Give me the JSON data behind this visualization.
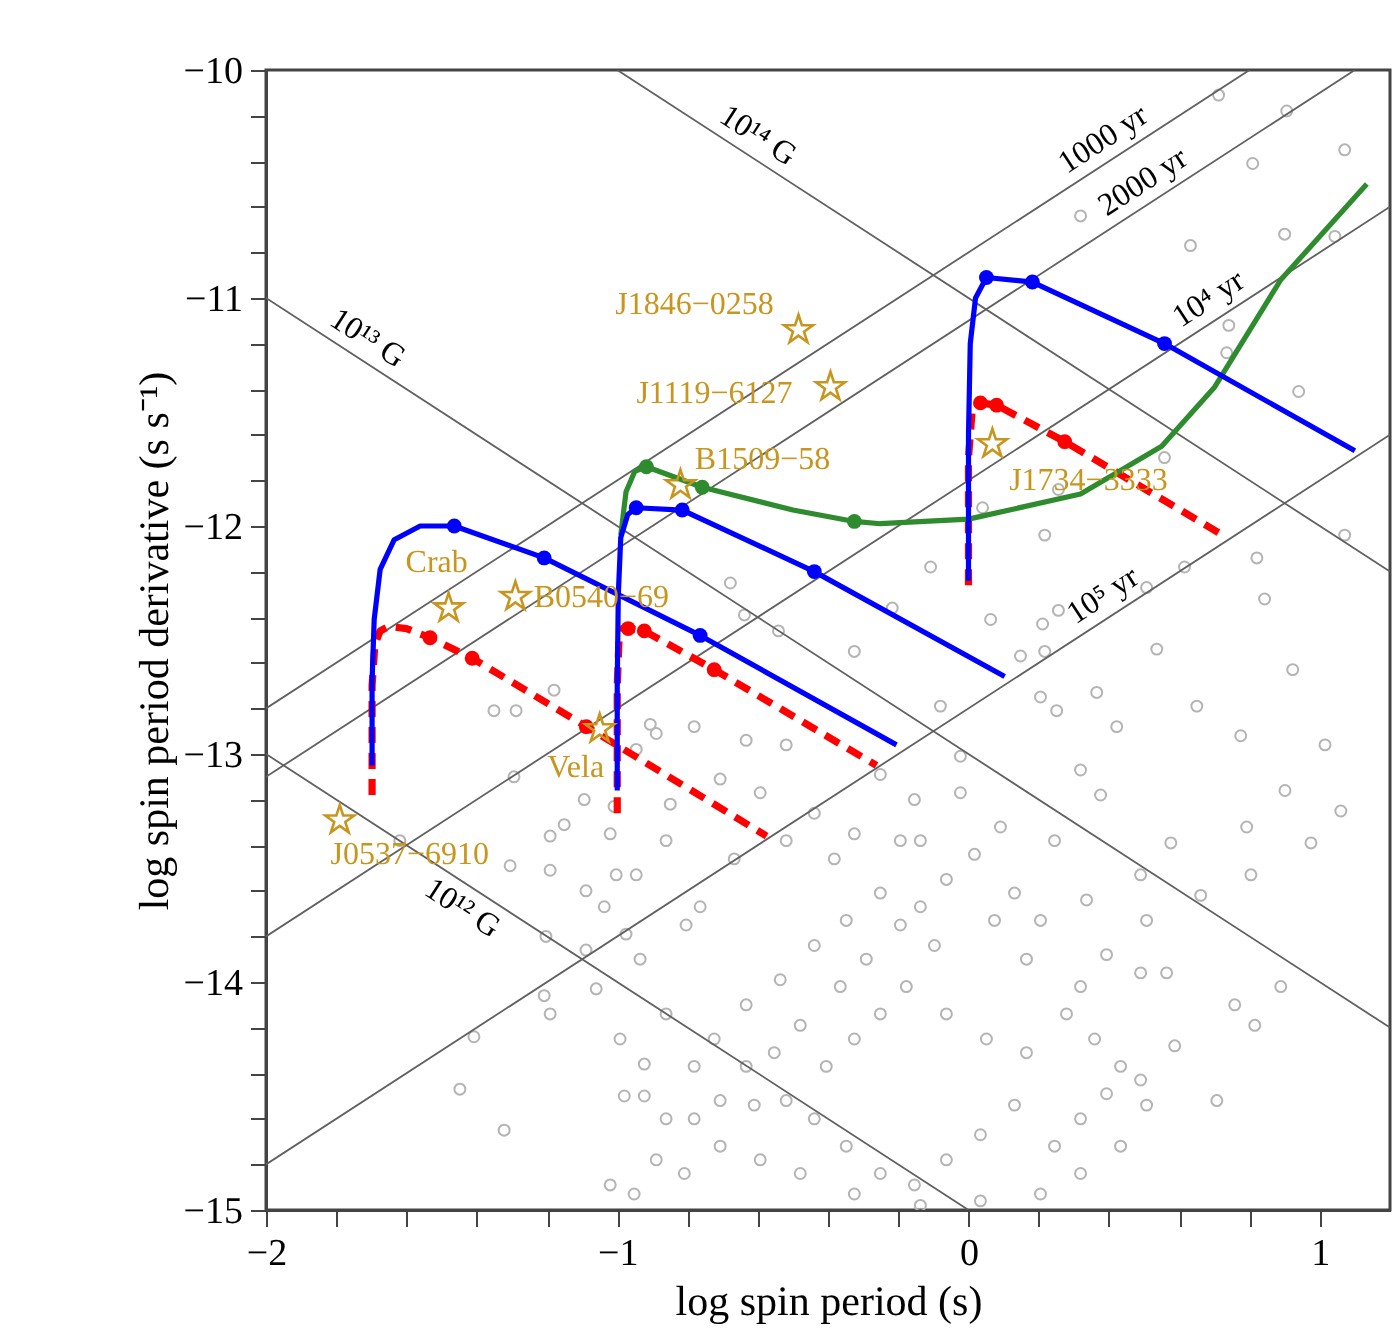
{
  "chart_data": {
    "type": "scatter",
    "xlabel": "log spin period (s)",
    "ylabel": "log spin period derivative (s s⁻¹)",
    "xlim": [
      -2,
      1.2
    ],
    "ylim": [
      -15,
      -10
    ],
    "xticks": [
      -2,
      {
        "value": -1.8,
        "label": null
      },
      {
        "value": -1.6,
        "label": null
      },
      {
        "value": -1.4,
        "label": null
      },
      {
        "value": -1.2,
        "label": null
      },
      -1,
      {
        "value": -0.8,
        "label": null
      },
      {
        "value": -0.6,
        "label": null
      },
      {
        "value": -0.4,
        "label": null
      },
      {
        "value": -0.2,
        "label": null
      },
      0,
      {
        "value": 0.2,
        "label": null
      },
      {
        "value": 0.4,
        "label": null
      },
      {
        "value": 0.6,
        "label": null
      },
      {
        "value": 0.8,
        "label": null
      },
      1
    ],
    "yticks": [
      -15,
      {
        "value": -14.8,
        "label": null
      },
      {
        "value": -14.6,
        "label": null
      },
      {
        "value": -14.4,
        "label": null
      },
      {
        "value": -14.2,
        "label": null
      },
      -14,
      {
        "value": -13.8,
        "label": null
      },
      {
        "value": -13.6,
        "label": null
      },
      {
        "value": -13.4,
        "label": null
      },
      {
        "value": -13.2,
        "label": null
      },
      -13,
      {
        "value": -12.8,
        "label": null
      },
      {
        "value": -12.6,
        "label": null
      },
      {
        "value": -12.4,
        "label": null
      },
      {
        "value": -12.2,
        "label": null
      },
      -12,
      {
        "value": -11.8,
        "label": null
      },
      {
        "value": -11.6,
        "label": null
      },
      {
        "value": -11.4,
        "label": null
      },
      {
        "value": -11.2,
        "label": null
      },
      -11,
      {
        "value": -10.8,
        "label": null
      },
      {
        "value": -10.6,
        "label": null
      },
      {
        "value": -10.4,
        "label": null
      },
      {
        "value": -10.2,
        "label": null
      },
      -10
    ],
    "grid": false,
    "legend": false,
    "series": [
      {
        "marker": "circle",
        "color": "#b4b4b4",
        "x": [
          0.712,
          0.906,
          0.809,
          1.071,
          0.319,
          0.632,
          0.9,
          1.043,
          0.741,
          0.735,
          0.94,
          0.558,
          0.256,
          0.04,
          0.217,
          -0.108,
          0.615,
          1.071,
          0.821,
          -0.217,
          0.256,
          0.507,
          0.843,
          -0.678,
          -0.638,
          -0.541,
          -0.325,
          0.063,
          0.211,
          0.536,
          0.923,
          0.148,
          0.217,
          -0.08,
          0.205,
          0.251,
          0.365,
          0.422,
          0.65,
          0.775,
          1.015,
          -0.023,
          0.319,
          0.376,
          0.901,
          1.06,
          0.975,
          0.792,
          0.576,
          0.804,
          0.49,
          0.661,
          0.758,
          0.815,
          0.889,
          0.707,
          0.587,
          0.49,
          0.319,
          0.393,
          0.165,
          0.074,
          -0.097,
          -0.251,
          -0.348,
          -0.439,
          -0.536,
          -0.633,
          -0.724,
          -0.781,
          -0.633,
          -0.519,
          -0.439,
          -0.348,
          -0.251,
          -0.154,
          -0.063,
          0.034,
          0.131,
          0.245,
          0.319,
          0.393,
          0.165,
          0.051,
          -0.063,
          -0.177,
          -0.251,
          -0.325,
          -0.405,
          -0.479,
          -0.553,
          -0.365,
          -0.291,
          -0.194,
          -0.137,
          -0.063,
          0.017,
          0.131,
          0.205,
          0.279,
          0.359,
          0.433,
          0.507,
          0.433,
          0.319,
          0.205,
          0.034,
          -0.137,
          -0.325,
          -0.479,
          -0.593,
          -0.707,
          -0.781,
          -0.707,
          -0.61,
          -0.764,
          -0.667,
          -0.519,
          -0.439,
          -0.325,
          -0.194,
          -0.154,
          -0.251,
          -0.519,
          -0.633,
          -0.781,
          -0.707,
          -0.593,
          -0.382,
          -0.137,
          -0.023,
          0.091,
          0.245,
          0.336,
          0.507,
          0.564,
          0.49,
          -1.351,
          -1.288,
          -1.18,
          -1.294,
          -1.094,
          -1.151,
          -1.191,
          -1.02,
          -1.305,
          -1.191,
          -1.089,
          -1.003,
          -0.946,
          -1.037,
          -1.203,
          -1.089,
          -0.935,
          -1.208,
          -1.191,
          -1.06,
          -1.408,
          -1.448,
          -1.322,
          -0.992,
          -0.923,
          -0.98,
          -0.923,
          -0.861,
          -0.889,
          -0.809,
          -1.02,
          -0.952,
          -0.975,
          -0.861,
          -0.804,
          -0.861,
          -0.889,
          -1.009,
          -0.946,
          -0.906,
          -0.849,
          -1.619
        ],
        "values": [
          -10.11,
          -10.18,
          -10.41,
          -10.35,
          -10.64,
          -10.77,
          -10.72,
          -10.73,
          -11.12,
          -11.24,
          -11.41,
          -11.7,
          -11.84,
          -11.92,
          -12.04,
          -12.18,
          -12.18,
          -12.04,
          -12.14,
          -12.36,
          -12.37,
          -12.27,
          -12.32,
          -12.25,
          -12.39,
          -12.46,
          -12.55,
          -12.41,
          -12.43,
          -12.54,
          -12.63,
          -12.57,
          -12.55,
          -12.79,
          -12.75,
          -12.81,
          -12.73,
          -12.88,
          -12.79,
          -12.92,
          -12.96,
          -13.01,
          -13.07,
          -13.18,
          -13.16,
          -13.25,
          -13.39,
          -13.32,
          -13.39,
          -13.53,
          -13.53,
          -13.62,
          -14.1,
          -14.19,
          -14.02,
          -14.52,
          -14.28,
          -14.43,
          -14.02,
          -13.88,
          -13.9,
          -13.73,
          -13.84,
          -13.61,
          -13.73,
          -13.84,
          -13.99,
          -14.1,
          -14.25,
          -14.37,
          -14.37,
          -14.52,
          -14.6,
          -14.72,
          -14.84,
          -14.89,
          -14.78,
          -14.67,
          -14.54,
          -14.72,
          -14.6,
          -14.49,
          -14.31,
          -14.25,
          -14.14,
          -14.02,
          -14.14,
          -14.25,
          -14.37,
          -14.19,
          -14.31,
          -14.02,
          -13.9,
          -13.75,
          -13.67,
          -13.55,
          -13.44,
          -13.61,
          -13.73,
          -14.14,
          -14.25,
          -14.37,
          -14.54,
          -14.72,
          -14.84,
          -14.93,
          -14.96,
          -14.98,
          -14.93,
          -14.84,
          -14.78,
          -14.72,
          -14.6,
          -14.52,
          -14.54,
          -13.67,
          -13.46,
          -13.38,
          -13.26,
          -13.35,
          -13.38,
          -13.2,
          -13.09,
          -12.96,
          -12.94,
          -12.88,
          -13.11,
          -13.17,
          -13.46,
          -13.38,
          -13.17,
          -13.32,
          -13.38,
          -13.64,
          -13.73,
          -13.96,
          -13.96,
          -12.81,
          -12.81,
          -12.72,
          -13.1,
          -13.2,
          -13.31,
          -13.36,
          -13.35,
          -13.49,
          -13.51,
          -13.6,
          -13.53,
          -13.53,
          -13.67,
          -13.8,
          -13.86,
          -13.9,
          -14.06,
          -14.14,
          -14.03,
          -14.24,
          -14.47,
          -14.65,
          -14.25,
          -14.36,
          -14.5,
          -14.5,
          -14.6,
          -14.78,
          -14.84,
          -14.89,
          -14.93,
          -13.79,
          -13.38,
          -13.75,
          -14.14,
          -12.91,
          -13.23,
          -12.98,
          -12.87,
          -13.22,
          -13.38
        ]
      },
      {
        "type": "line",
        "name": "10¹⁴ G",
        "line_style": "solid",
        "color": "#606060",
        "x": [
          -1,
          1.2
        ],
        "values": [
          -10,
          -12.2
        ]
      },
      {
        "type": "line",
        "name": "10¹³ G",
        "line_style": "solid",
        "color": "#606060",
        "x": [
          -2,
          1.2
        ],
        "values": [
          -11,
          -14.2
        ]
      },
      {
        "type": "line",
        "name": "10¹² G",
        "line_style": "solid",
        "color": "#606060",
        "x": [
          -2,
          0
        ],
        "values": [
          -13,
          -15
        ]
      },
      {
        "type": "line",
        "name": "1000 yr",
        "line_style": "solid",
        "color": "#606060",
        "x": [
          -2,
          0.8
        ],
        "values": [
          -12.8,
          -10
        ]
      },
      {
        "type": "line",
        "name": "2000 yr",
        "line_style": "solid",
        "color": "#606060",
        "x": [
          -2,
          1.1
        ],
        "values": [
          -13.1,
          -10
        ]
      },
      {
        "type": "line",
        "name": "10⁴ yr",
        "line_style": "solid",
        "color": "#606060",
        "x": [
          -2,
          1.2
        ],
        "values": [
          -13.8,
          -10.6
        ]
      },
      {
        "type": "line",
        "name": "10⁵ yr",
        "line_style": "solid",
        "color": "#606060",
        "x": [
          -2,
          1.2
        ],
        "values": [
          -14.8,
          -11.6
        ]
      },
      {
        "type": "line",
        "line_style": "dashed",
        "color": "#ff0000",
        "x": [
          -1.698,
          -1.698,
          -1.69,
          -1.675,
          -1.65,
          -1.6,
          -1.533,
          -1.413,
          -1.088,
          -0.575
        ],
        "values": [
          -13.18,
          -12.7,
          -12.52,
          -12.46,
          -12.44,
          -12.45,
          -12.49,
          -12.58,
          -12.88,
          -13.36
        ]
      },
      {
        "type": "line",
        "line_style": "dashed",
        "color": "#ff0000",
        "x": [
          -1.0,
          -1.0,
          -0.995,
          -0.985,
          -0.969,
          -0.923,
          -0.724,
          -0.262
        ],
        "values": [
          -13.26,
          -12.7,
          -12.5,
          -12.45,
          -12.45,
          -12.46,
          -12.63,
          -13.05
        ]
      },
      {
        "type": "line",
        "line_style": "dashed",
        "color": "#ff0000",
        "x": [
          0.0,
          0.0,
          0.01,
          0.034,
          0.08,
          0.274,
          0.735
        ],
        "values": [
          -12.26,
          -11.7,
          -11.5,
          -11.46,
          -11.47,
          -11.63,
          -12.05
        ]
      },
      {
        "type": "line",
        "line_style": "solid",
        "color": "#2e8b2e",
        "x": [
          -0.99,
          -0.975,
          -0.95,
          -0.917,
          -0.758,
          -0.5,
          -0.325,
          -0.251,
          0.0,
          0.319,
          0.55,
          0.701,
          0.889,
          1.134
        ],
        "values": [
          -12.04,
          -11.85,
          -11.76,
          -11.74,
          -11.83,
          -11.93,
          -11.98,
          -11.99,
          -11.97,
          -11.86,
          -11.65,
          -11.39,
          -10.92,
          -10.5
        ]
      },
      {
        "type": "line",
        "line_style": "solid",
        "color": "#0000ff",
        "x": [
          -1.698,
          -1.698,
          -1.692,
          -1.675,
          -1.635,
          -1.561,
          -1.464,
          -1.208,
          -0.764,
          -0.205
        ],
        "values": [
          -13.05,
          -12.68,
          -12.41,
          -12.19,
          -12.06,
          -12.0,
          -12.0,
          -12.14,
          -12.48,
          -12.96
        ]
      },
      {
        "type": "line",
        "line_style": "solid",
        "color": "#0000ff",
        "x": [
          -1.0,
          -1.0,
          -0.997,
          -0.99,
          -0.97,
          -0.946,
          -0.815,
          -0.439,
          0.103
        ],
        "values": [
          -13.16,
          -12.7,
          -12.3,
          -12.05,
          -11.95,
          -11.92,
          -11.93,
          -12.2,
          -12.66
        ]
      },
      {
        "type": "line",
        "line_style": "solid",
        "color": "#0000ff",
        "x": [
          0.0,
          0.0,
          0.005,
          0.02,
          0.051,
          0.182,
          0.558,
          1.1
        ],
        "values": [
          -12.24,
          -11.6,
          -11.2,
          -11.0,
          -10.91,
          -10.93,
          -11.2,
          -11.67
        ]
      },
      {
        "marker": "circle",
        "color": "#2e8b2e",
        "x": [
          -0.917,
          -0.758,
          -0.325
        ],
        "values": [
          -11.74,
          -11.83,
          -11.98
        ]
      },
      {
        "marker": "circle",
        "color": "#0000ff",
        "x": [
          -1.464,
          -1.208,
          -0.764,
          -0.946,
          -0.815,
          -0.439,
          0.051,
          0.182,
          0.558
        ],
        "values": [
          -12.0,
          -12.14,
          -12.48,
          -11.92,
          -11.93,
          -12.2,
          -10.91,
          -10.93,
          -11.2
        ]
      },
      {
        "marker": "circle",
        "color": "#ff0000",
        "x": [
          -1.533,
          -1.413,
          -1.088,
          -0.969,
          -0.923,
          -0.724,
          0.034,
          0.08,
          0.274
        ],
        "values": [
          -12.49,
          -12.58,
          -12.88,
          -12.45,
          -12.46,
          -12.63,
          -11.46,
          -11.47,
          -11.63
        ]
      },
      {
        "marker": "star",
        "color": "#c8961e",
        "x": [
          -0.484,
          -0.393,
          -0.82,
          0.068,
          -1.48,
          -1.29,
          -1.05,
          -1.79
        ],
        "values": [
          -11.14,
          -11.39,
          -11.82,
          -11.64,
          -12.36,
          -12.31,
          -12.89,
          -13.29
        ]
      }
    ],
    "annotations": [
      {
        "text": "J1846−0258",
        "x": -0.484,
        "y": -11.14
      },
      {
        "text": "J1119−6127",
        "x": -0.393,
        "y": -11.39
      },
      {
        "text": "B1509−58",
        "x": -0.82,
        "y": -11.82
      },
      {
        "text": "J1734−3333",
        "x": 0.068,
        "y": -11.64
      },
      {
        "text": "Crab",
        "x": -1.48,
        "y": -12.36
      },
      {
        "text": "B0540−69",
        "x": -1.29,
        "y": -12.31
      },
      {
        "text": "Vela",
        "x": -1.05,
        "y": -12.89
      },
      {
        "text": "J0537−6910",
        "x": -1.79,
        "y": -13.29
      }
    ]
  }
}
